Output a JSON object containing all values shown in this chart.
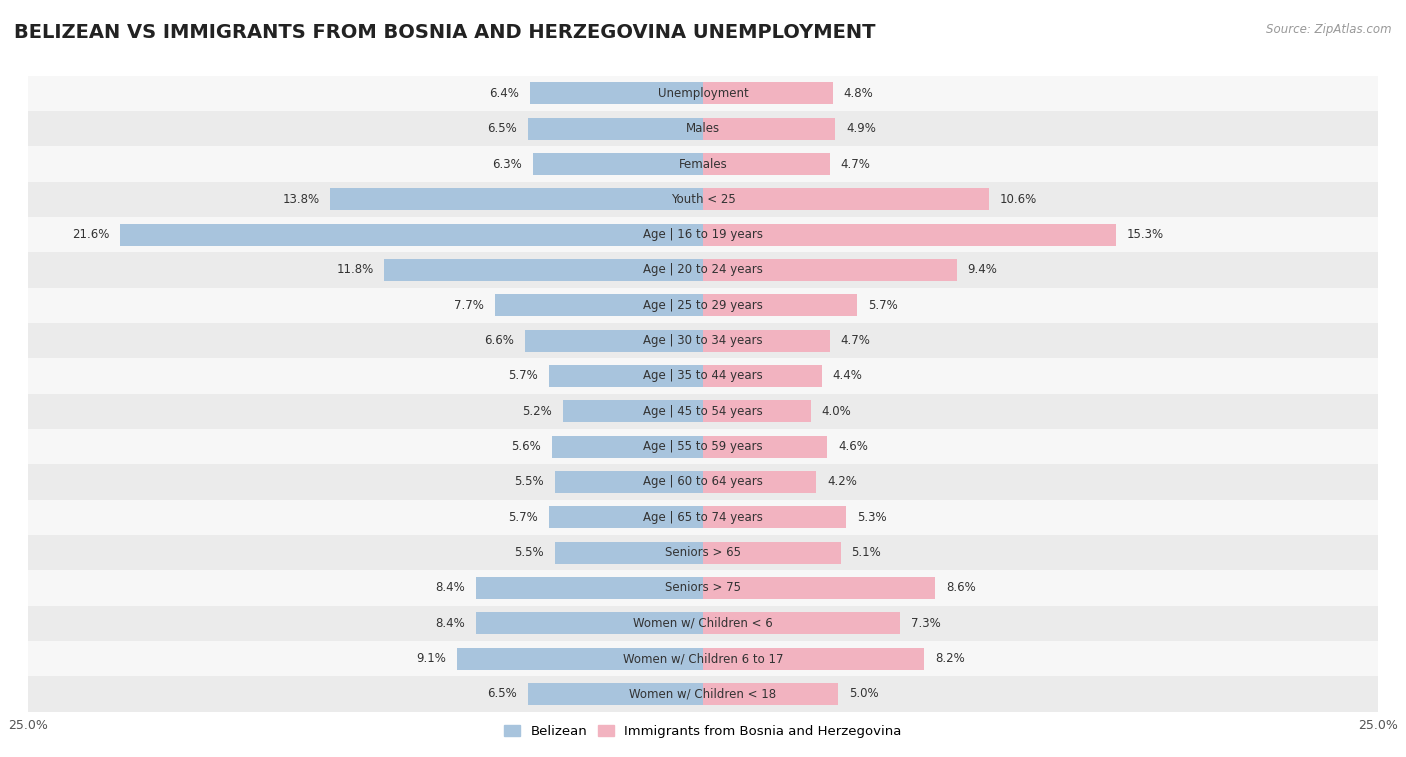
{
  "title": "BELIZEAN VS IMMIGRANTS FROM BOSNIA AND HERZEGOVINA UNEMPLOYMENT",
  "source": "Source: ZipAtlas.com",
  "categories": [
    "Unemployment",
    "Males",
    "Females",
    "Youth < 25",
    "Age | 16 to 19 years",
    "Age | 20 to 24 years",
    "Age | 25 to 29 years",
    "Age | 30 to 34 years",
    "Age | 35 to 44 years",
    "Age | 45 to 54 years",
    "Age | 55 to 59 years",
    "Age | 60 to 64 years",
    "Age | 65 to 74 years",
    "Seniors > 65",
    "Seniors > 75",
    "Women w/ Children < 6",
    "Women w/ Children 6 to 17",
    "Women w/ Children < 18"
  ],
  "belizean": [
    6.4,
    6.5,
    6.3,
    13.8,
    21.6,
    11.8,
    7.7,
    6.6,
    5.7,
    5.2,
    5.6,
    5.5,
    5.7,
    5.5,
    8.4,
    8.4,
    9.1,
    6.5
  ],
  "bosnia": [
    4.8,
    4.9,
    4.7,
    10.6,
    15.3,
    9.4,
    5.7,
    4.7,
    4.4,
    4.0,
    4.6,
    4.2,
    5.3,
    5.1,
    8.6,
    7.3,
    8.2,
    5.0
  ],
  "belizean_color": "#A8C4DD",
  "bosnia_color": "#F2B3C0",
  "background_row_odd": "#EBEBEB",
  "background_row_even": "#F7F7F7",
  "axis_limit": 25.0,
  "bar_height": 0.62,
  "label_fontsize": 8.5,
  "title_fontsize": 14,
  "category_fontsize": 8.5,
  "value_fontsize": 8.5
}
